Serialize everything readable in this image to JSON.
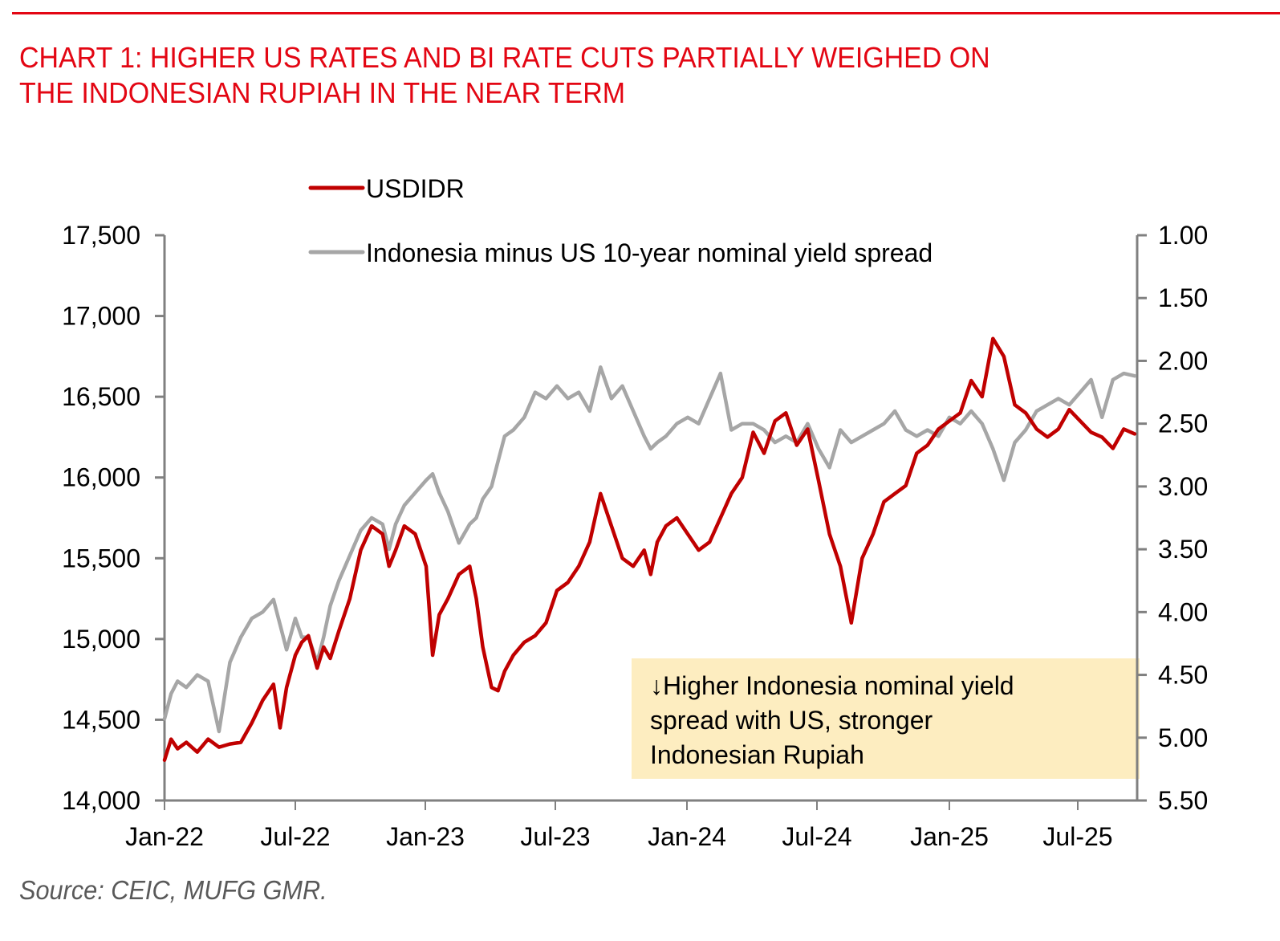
{
  "header": {
    "title_line1": "CHART 1: HIGHER US RATES AND BI RATE CUTS PARTIALLY WEIGHED ON",
    "title_line2": "THE INDONESIAN RUPIAH IN THE NEAR TERM"
  },
  "footer": {
    "source": "Source: CEIC, MUFG GMR."
  },
  "colors": {
    "title": "#e30613",
    "usdidr": "#c00000",
    "spread": "#a6a6a6",
    "axis": "#808080",
    "annotation_bg": "#fdedc0"
  },
  "annotation": {
    "arrow": "↓",
    "line1": "Higher Indonesia nominal yield",
    "line2": "spread with US, stronger",
    "line3": "Indonesian Rupiah"
  },
  "chart_data": {
    "type": "line",
    "title": "CHART 1: HIGHER US RATES AND BI RATE CUTS PARTIALLY WEIGHED ON THE INDONESIAN RUPIAH IN THE NEAR TERM",
    "xlabel": "",
    "ylabel": "",
    "y2label": "",
    "legend_position": "top-center",
    "grid": false,
    "x_ticks": [
      "Jan-22",
      "Jul-22",
      "Jan-23",
      "Jul-23",
      "Jan-24",
      "Jul-24",
      "Jan-25",
      "Jul-25"
    ],
    "x_range": [
      "2022-01",
      "2025-09"
    ],
    "ylim": [
      14000,
      17500
    ],
    "y_ticks": [
      "17,500",
      "17,000",
      "16,500",
      "16,000",
      "15,500",
      "15,000",
      "14,500",
      "14,000"
    ],
    "y_tick_values": [
      17500,
      17000,
      16500,
      16000,
      15500,
      15000,
      14500,
      14000
    ],
    "y2lim": [
      1.0,
      5.5
    ],
    "y2_inverted": true,
    "y2_ticks": [
      "1.00",
      "1.50",
      "2.00",
      "2.50",
      "3.00",
      "3.50",
      "4.00",
      "4.50",
      "5.00",
      "5.50"
    ],
    "y2_tick_values": [
      1.0,
      1.5,
      2.0,
      2.5,
      3.0,
      3.5,
      4.0,
      4.5,
      5.0,
      5.5
    ],
    "x_month_index_note": "x values are months since Jan-22 (0 = Jan-22)",
    "series": [
      {
        "name": "USDIDR",
        "axis": "left",
        "x": [
          0,
          0.3,
          0.6,
          1,
          1.5,
          2,
          2.5,
          3,
          3.5,
          4,
          4.5,
          5,
          5.3,
          5.6,
          6,
          6.3,
          6.6,
          7,
          7.3,
          7.6,
          8,
          8.5,
          9,
          9.5,
          10,
          10.3,
          10.6,
          11,
          11.5,
          12,
          12.3,
          12.6,
          13,
          13.5,
          14,
          14.3,
          14.6,
          15,
          15.3,
          15.6,
          16,
          16.5,
          17,
          17.5,
          18,
          18.5,
          19,
          19.5,
          20,
          20.5,
          21,
          21.5,
          22,
          22.3,
          22.6,
          23,
          23.5,
          24,
          24.5,
          25,
          25.5,
          26,
          26.5,
          27,
          27.5,
          28,
          28.5,
          29,
          29.5,
          30,
          30.5,
          31,
          31.5,
          32,
          32.5,
          33,
          33.5,
          34,
          34.5,
          35,
          35.5,
          36,
          36.5,
          37,
          37.5,
          38,
          38.5,
          39,
          39.5,
          40,
          40.5,
          41,
          41.5,
          42,
          42.5,
          43,
          43.5,
          44,
          44.5
        ],
        "values": [
          14250,
          14380,
          14320,
          14360,
          14300,
          14380,
          14330,
          14350,
          14360,
          14480,
          14620,
          14720,
          14450,
          14700,
          14900,
          14980,
          15020,
          14820,
          14950,
          14880,
          15050,
          15250,
          15550,
          15700,
          15650,
          15450,
          15550,
          15700,
          15650,
          15450,
          14900,
          15150,
          15250,
          15400,
          15450,
          15250,
          14950,
          14700,
          14680,
          14800,
          14900,
          14980,
          15020,
          15100,
          15300,
          15350,
          15450,
          15600,
          15900,
          15700,
          15500,
          15450,
          15550,
          15400,
          15600,
          15700,
          15750,
          15650,
          15550,
          15600,
          15750,
          15900,
          16000,
          16280,
          16150,
          16350,
          16400,
          16200,
          16300,
          15980,
          15650,
          15450,
          15100,
          15500,
          15650,
          15850,
          15900,
          15950,
          16150,
          16200,
          16300,
          16350,
          16400,
          16600,
          16500,
          16860,
          16750,
          16450,
          16400,
          16300,
          16250,
          16300,
          16420,
          16350,
          16280,
          16250,
          16180,
          16300,
          16270
        ],
        "color": "#c00000"
      },
      {
        "name": "Indonesia minus US 10-year nominal yield spread",
        "axis": "right",
        "x": [
          0,
          0.3,
          0.6,
          1,
          1.5,
          2,
          2.5,
          3,
          3.5,
          4,
          4.5,
          5,
          5.3,
          5.6,
          6,
          6.3,
          6.6,
          7,
          7.3,
          7.6,
          8,
          8.5,
          9,
          9.5,
          10,
          10.3,
          10.6,
          11,
          11.5,
          12,
          12.3,
          12.6,
          13,
          13.5,
          14,
          14.3,
          14.6,
          15,
          15.3,
          15.6,
          16,
          16.5,
          17,
          17.5,
          18,
          18.5,
          19,
          19.5,
          20,
          20.5,
          21,
          21.5,
          22,
          22.3,
          22.6,
          23,
          23.5,
          24,
          24.5,
          25,
          25.5,
          26,
          26.5,
          27,
          27.5,
          28,
          28.5,
          29,
          29.5,
          30,
          30.5,
          31,
          31.5,
          32,
          32.5,
          33,
          33.5,
          34,
          34.5,
          35,
          35.5,
          36,
          36.5,
          37,
          37.5,
          38,
          38.5,
          39,
          39.5,
          40,
          40.5,
          41,
          41.5,
          42,
          42.5,
          43,
          43.5,
          44,
          44.5
        ],
        "values": [
          4.85,
          4.65,
          4.55,
          4.6,
          4.5,
          4.55,
          4.95,
          4.4,
          4.2,
          4.05,
          4.0,
          3.9,
          4.1,
          4.3,
          4.05,
          4.2,
          4.2,
          4.4,
          4.2,
          3.95,
          3.75,
          3.55,
          3.35,
          3.25,
          3.3,
          3.5,
          3.3,
          3.15,
          3.05,
          2.95,
          2.9,
          3.05,
          3.2,
          3.45,
          3.3,
          3.25,
          3.1,
          3.0,
          2.8,
          2.6,
          2.55,
          2.45,
          2.25,
          2.3,
          2.2,
          2.3,
          2.25,
          2.4,
          2.05,
          2.3,
          2.2,
          2.4,
          2.6,
          2.7,
          2.65,
          2.6,
          2.5,
          2.45,
          2.5,
          2.3,
          2.1,
          2.55,
          2.5,
          2.5,
          2.55,
          2.65,
          2.6,
          2.65,
          2.5,
          2.7,
          2.85,
          2.55,
          2.65,
          2.6,
          2.55,
          2.5,
          2.4,
          2.55,
          2.6,
          2.55,
          2.6,
          2.45,
          2.5,
          2.4,
          2.5,
          2.7,
          2.95,
          2.65,
          2.55,
          2.4,
          2.35,
          2.3,
          2.35,
          2.25,
          2.15,
          2.45,
          2.15,
          2.1,
          2.12
        ],
        "color": "#a6a6a6"
      }
    ]
  }
}
